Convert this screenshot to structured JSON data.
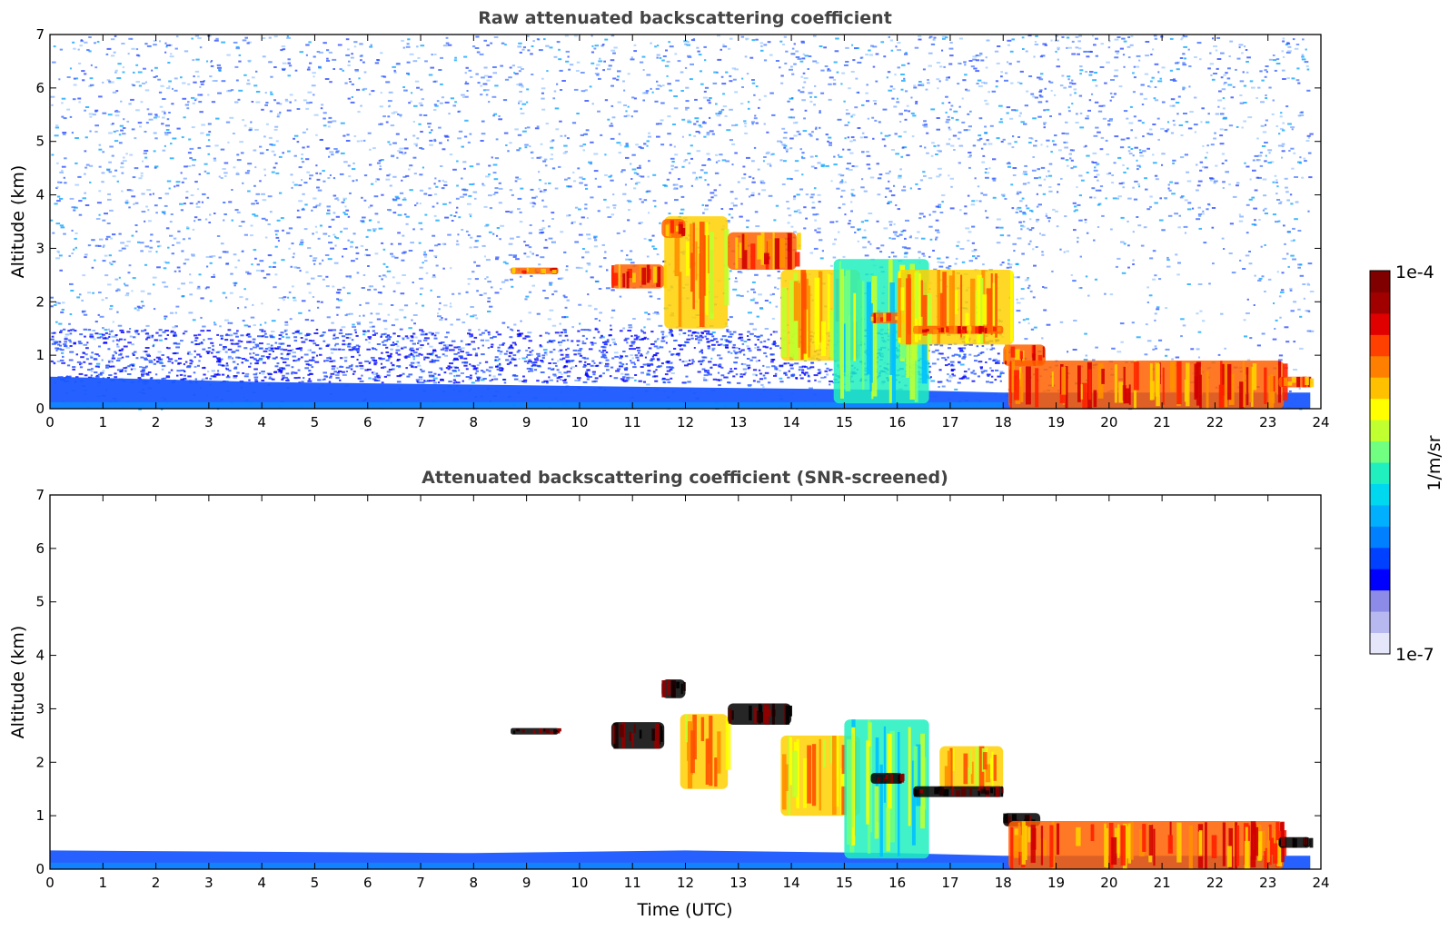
{
  "chart_data": [
    {
      "type": "heatmap",
      "title": "Raw attenuated backscattering coefficient",
      "xlabel": "",
      "ylabel": "Altitude (km)",
      "xlim": [
        0,
        24
      ],
      "ylim": [
        0,
        7
      ],
      "x_ticks": [
        "0",
        "1",
        "2",
        "3",
        "4",
        "5",
        "6",
        "7",
        "8",
        "9",
        "10",
        "11",
        "12",
        "13",
        "14",
        "15",
        "16",
        "17",
        "18",
        "19",
        "20",
        "21",
        "22",
        "23",
        "24"
      ],
      "y_ticks": [
        "0",
        "1",
        "2",
        "3",
        "4",
        "5",
        "6",
        "7"
      ],
      "background_noise": true,
      "boundary_layer": [
        [
          0,
          0.6
        ],
        [
          4,
          0.5
        ],
        [
          8,
          0.45
        ],
        [
          12,
          0.4
        ],
        [
          16,
          0.35
        ],
        [
          18,
          0.3
        ],
        [
          23.8,
          0.3
        ]
      ],
      "features": [
        {
          "name": "aerosol layer 9h",
          "t0": 8.7,
          "t1": 9.6,
          "z0": 2.52,
          "z1": 2.64,
          "level": "high"
        },
        {
          "name": "cloud 11h",
          "t0": 10.6,
          "t1": 11.6,
          "z0": 2.25,
          "z1": 2.7,
          "level": "high"
        },
        {
          "name": "cloud 12h",
          "t0": 11.6,
          "t1": 12.8,
          "z0": 1.5,
          "z1": 3.6,
          "level": "mid"
        },
        {
          "name": "cloud top 12h",
          "t0": 11.55,
          "t1": 12.0,
          "z0": 3.2,
          "z1": 3.55,
          "level": "high"
        },
        {
          "name": "cloud 13h",
          "t0": 12.8,
          "t1": 14.1,
          "z0": 2.6,
          "z1": 3.3,
          "level": "high"
        },
        {
          "name": "cloud 14h",
          "t0": 13.8,
          "t1": 15.3,
          "z0": 0.9,
          "z1": 2.6,
          "level": "mid"
        },
        {
          "name": "cloud 15h",
          "t0": 14.8,
          "t1": 16.6,
          "z0": 0.1,
          "z1": 2.8,
          "level": "low"
        },
        {
          "name": "layer 16h",
          "t0": 15.5,
          "t1": 16.1,
          "z0": 1.6,
          "z1": 1.8,
          "level": "high"
        },
        {
          "name": "cloud 17h",
          "t0": 16.0,
          "t1": 18.2,
          "z0": 1.2,
          "z1": 2.6,
          "level": "mid"
        },
        {
          "name": "layer 17h",
          "t0": 16.3,
          "t1": 18.0,
          "z0": 1.4,
          "z1": 1.55,
          "level": "high"
        },
        {
          "name": "layer 18h",
          "t0": 18.0,
          "t1": 18.8,
          "z0": 0.8,
          "z1": 1.2,
          "level": "high"
        },
        {
          "name": "boundary layer 19-23h",
          "t0": 18.1,
          "t1": 23.3,
          "z0": 0.0,
          "z1": 0.9,
          "level": "high"
        },
        {
          "name": "layer 23h",
          "t0": 23.2,
          "t1": 23.8,
          "z0": 0.4,
          "z1": 0.6,
          "level": "high"
        }
      ]
    },
    {
      "type": "heatmap",
      "title": "Attenuated backscattering coefficient (SNR-screened)",
      "xlabel": "Time (UTC)",
      "ylabel": "Altitude (km)",
      "xlim": [
        0,
        24
      ],
      "ylim": [
        0,
        7
      ],
      "x_ticks": [
        "0",
        "1",
        "2",
        "3",
        "4",
        "5",
        "6",
        "7",
        "8",
        "9",
        "10",
        "11",
        "12",
        "13",
        "14",
        "15",
        "16",
        "17",
        "18",
        "19",
        "20",
        "21",
        "22",
        "23",
        "24"
      ],
      "y_ticks": [
        "0",
        "1",
        "2",
        "3",
        "4",
        "5",
        "6",
        "7"
      ],
      "background_noise": false,
      "boundary_layer": [
        [
          0,
          0.35
        ],
        [
          8,
          0.3
        ],
        [
          12,
          0.35
        ],
        [
          16,
          0.3
        ],
        [
          18,
          0.25
        ],
        [
          23.8,
          0.25
        ]
      ],
      "features": [
        {
          "name": "aerosol layer 9h",
          "t0": 8.7,
          "t1": 9.6,
          "z0": 2.52,
          "z1": 2.64,
          "level": "black"
        },
        {
          "name": "cloud 11h",
          "t0": 10.6,
          "t1": 11.6,
          "z0": 2.25,
          "z1": 2.75,
          "level": "black"
        },
        {
          "name": "cloud top 12h",
          "t0": 11.55,
          "t1": 12.0,
          "z0": 3.2,
          "z1": 3.55,
          "level": "black"
        },
        {
          "name": "cloud 12h",
          "t0": 11.9,
          "t1": 12.8,
          "z0": 1.5,
          "z1": 2.9,
          "level": "mid"
        },
        {
          "name": "cloud 13h",
          "t0": 12.8,
          "t1": 14.0,
          "z0": 2.7,
          "z1": 3.1,
          "level": "black"
        },
        {
          "name": "cloud 14h",
          "t0": 13.8,
          "t1": 15.3,
          "z0": 1.0,
          "z1": 2.5,
          "level": "mid"
        },
        {
          "name": "cloud 15h",
          "t0": 15.0,
          "t1": 16.6,
          "z0": 0.2,
          "z1": 2.8,
          "level": "low"
        },
        {
          "name": "layer 16h",
          "t0": 15.5,
          "t1": 16.1,
          "z0": 1.6,
          "z1": 1.8,
          "level": "black"
        },
        {
          "name": "cloud 17h",
          "t0": 16.8,
          "t1": 18.0,
          "z0": 1.5,
          "z1": 2.3,
          "level": "mid"
        },
        {
          "name": "layer 17h",
          "t0": 16.3,
          "t1": 18.0,
          "z0": 1.35,
          "z1": 1.55,
          "level": "black"
        },
        {
          "name": "layer 18h",
          "t0": 18.0,
          "t1": 18.7,
          "z0": 0.8,
          "z1": 1.05,
          "level": "black"
        },
        {
          "name": "boundary layer 19-23h",
          "t0": 18.1,
          "t1": 23.3,
          "z0": 0.0,
          "z1": 0.9,
          "level": "high"
        },
        {
          "name": "layer 23h",
          "t0": 23.2,
          "t1": 23.8,
          "z0": 0.4,
          "z1": 0.6,
          "level": "black"
        }
      ]
    }
  ],
  "colorbar": {
    "max_label": "1e-4",
    "min_label": "1e-7",
    "unit_label": "1/m/sr",
    "colors": [
      "#e6e6fa",
      "#b8b8f0",
      "#8c8ce8",
      "#0000ff",
      "#0040ff",
      "#0080ff",
      "#00b0ff",
      "#00d8f0",
      "#20f0c0",
      "#70ff80",
      "#c0ff30",
      "#ffff00",
      "#ffc000",
      "#ff8000",
      "#ff4000",
      "#e00000",
      "#a00000",
      "#800000"
    ]
  }
}
